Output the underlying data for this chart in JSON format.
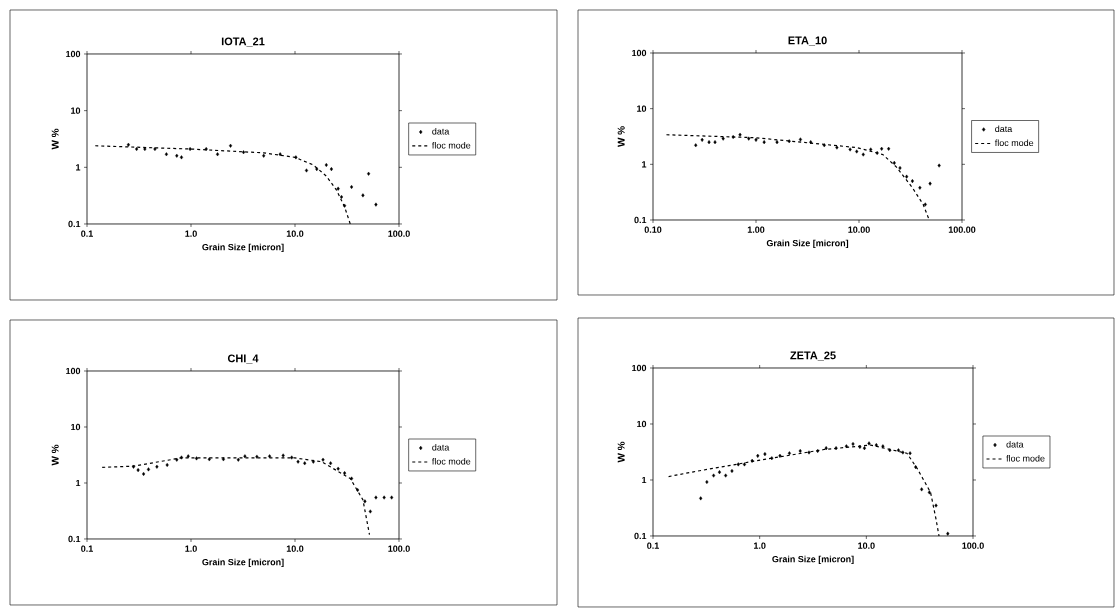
{
  "chart_data": [
    {
      "type": "scatter",
      "title": "IOTA_21",
      "xlabel": "Grain Size [micron]",
      "ylabel": "W %",
      "log": "xy",
      "legend": "right",
      "xlim": [
        0.1,
        100
      ],
      "ylim": [
        0.1,
        100
      ],
      "xticks": [
        {
          "value": 0.1,
          "label": "0.1"
        },
        {
          "value": 1,
          "label": "1.0"
        },
        {
          "value": 10,
          "label": "10.0"
        },
        {
          "value": 100,
          "label": "100.0"
        }
      ],
      "yticks": [
        0.1,
        1,
        10,
        100
      ],
      "series": [
        {
          "name": "data",
          "marker": "diamond",
          "color": "#000000",
          "x": [
            0.25,
            0.3,
            0.36,
            0.45,
            0.58,
            0.73,
            0.81,
            0.98,
            1.4,
            1.8,
            2.4,
            3.2,
            5.0,
            7.2,
            10.2,
            12.9,
            16.2,
            20,
            22.4,
            26,
            28,
            30,
            35,
            45,
            51,
            60
          ],
          "values": [
            2.5,
            2.1,
            2.1,
            2.1,
            1.7,
            1.6,
            1.5,
            2.1,
            2.1,
            1.7,
            2.4,
            1.85,
            1.6,
            1.7,
            1.5,
            0.88,
            0.93,
            1.1,
            0.93,
            0.42,
            0.3,
            0.21,
            0.45,
            0.32,
            0.77,
            0.22
          ]
        },
        {
          "name": "floc mode",
          "type": "line",
          "marker": "none",
          "line_style": "dashed",
          "color": "#000000",
          "x": [
            0.12,
            1,
            5,
            10,
            15,
            20,
            25,
            30,
            34
          ],
          "values": [
            2.4,
            2.1,
            1.8,
            1.5,
            1.1,
            0.7,
            0.4,
            0.2,
            0.1
          ]
        }
      ]
    },
    {
      "type": "scatter",
      "title": "ETA_10",
      "xlabel": "Grain Size [micron]",
      "ylabel": "W %",
      "log": "xy",
      "legend": "right",
      "xlim": [
        0.1,
        100
      ],
      "ylim": [
        0.1,
        100
      ],
      "xticks": [
        {
          "value": 0.1,
          "label": "0.10"
        },
        {
          "value": 1,
          "label": "1.00"
        },
        {
          "value": 10,
          "label": "10.00"
        },
        {
          "value": 100,
          "label": "100.00"
        }
      ],
      "yticks": [
        0.1,
        1,
        10,
        100
      ],
      "series": [
        {
          "name": "data",
          "marker": "diamond",
          "color": "#000000",
          "x": [
            0.26,
            0.3,
            0.35,
            0.4,
            0.48,
            0.6,
            0.7,
            0.85,
            1.0,
            1.2,
            1.6,
            2.1,
            2.7,
            3.4,
            4.6,
            6.1,
            8.2,
            9.5,
            11,
            13,
            15,
            16.6,
            19.4,
            22,
            25,
            29,
            33,
            39,
            44,
            49,
            60
          ],
          "values": [
            2.2,
            2.75,
            2.5,
            2.5,
            2.9,
            3.1,
            3.4,
            2.9,
            2.75,
            2.5,
            2.5,
            2.6,
            2.8,
            2.5,
            2.2,
            2.0,
            1.85,
            1.7,
            1.5,
            1.85,
            1.6,
            1.9,
            1.9,
            1.06,
            0.86,
            0.6,
            0.5,
            0.38,
            0.19,
            0.45,
            0.95
          ]
        },
        {
          "name": "floc mode",
          "type": "line",
          "marker": "none",
          "line_style": "dashed",
          "color": "#000000",
          "x": [
            0.135,
            1.0,
            9.5,
            17,
            23,
            33,
            42,
            48
          ],
          "values": [
            3.4,
            3.0,
            2.0,
            1.5,
            0.9,
            0.38,
            0.19,
            0.1
          ]
        }
      ]
    },
    {
      "type": "scatter",
      "title": "CHI_4",
      "xlabel": "Grain Size [micron]",
      "ylabel": "W %",
      "log": "xy",
      "legend": "right",
      "xlim": [
        0.1,
        100
      ],
      "ylim": [
        0.1,
        100
      ],
      "xticks": [
        {
          "value": 0.1,
          "label": "0.1"
        },
        {
          "value": 1,
          "label": "1.0"
        },
        {
          "value": 10,
          "label": "10.0"
        },
        {
          "value": 100,
          "label": "100.0"
        }
      ],
      "yticks": [
        0.1,
        1,
        10,
        100
      ],
      "series": [
        {
          "name": "data",
          "marker": "diamond",
          "color": "#000000",
          "x": [
            0.28,
            0.31,
            0.35,
            0.39,
            0.47,
            0.59,
            0.73,
            0.81,
            0.94,
            1.13,
            1.5,
            2.05,
            2.85,
            3.3,
            4.3,
            5.7,
            7.7,
            9.3,
            10.7,
            12.4,
            15,
            18.6,
            22,
            26,
            30,
            35,
            40,
            47,
            53,
            60,
            72,
            85
          ],
          "values": [
            1.95,
            1.7,
            1.45,
            1.75,
            1.95,
            2.1,
            2.6,
            2.85,
            3.0,
            2.75,
            2.65,
            2.65,
            2.6,
            3.0,
            2.95,
            3.0,
            3.1,
            2.85,
            2.4,
            2.25,
            2.4,
            2.6,
            2.25,
            1.8,
            1.5,
            1.2,
            0.75,
            0.47,
            0.31,
            0.55,
            0.55,
            0.55
          ]
        },
        {
          "name": "floc mode",
          "type": "line",
          "marker": "none",
          "line_style": "dashed",
          "color": "#000000",
          "x": [
            0.14,
            0.28,
            0.8,
            10,
            18,
            34,
            45,
            52
          ],
          "values": [
            1.9,
            2.0,
            2.8,
            2.8,
            2.4,
            1.2,
            0.5,
            0.12
          ]
        }
      ]
    },
    {
      "type": "scatter",
      "title": "ZETA_25",
      "xlabel": "Grain Size [micron]",
      "ylabel": "W %",
      "log": "xy",
      "legend": "right",
      "xlim": [
        0.1,
        100
      ],
      "ylim": [
        0.1,
        100
      ],
      "xticks": [
        {
          "value": 0.1,
          "label": "0.1"
        },
        {
          "value": 1,
          "label": "1.0"
        },
        {
          "value": 10,
          "label": "10.0"
        },
        {
          "value": 100,
          "label": "100.0"
        }
      ],
      "yticks": [
        0.1,
        1,
        10,
        100
      ],
      "series": [
        {
          "name": "data",
          "marker": "diamond",
          "color": "#000000",
          "x": [
            0.28,
            0.32,
            0.37,
            0.42,
            0.48,
            0.55,
            0.63,
            0.72,
            0.85,
            0.96,
            1.12,
            1.3,
            1.55,
            1.9,
            2.4,
            2.9,
            3.5,
            4.2,
            5.2,
            6.5,
            7.5,
            8.7,
            9.6,
            10.6,
            12.4,
            14.3,
            16.6,
            20,
            22,
            25.7,
            29,
            33,
            39,
            45,
            58
          ],
          "values": [
            0.47,
            0.92,
            1.2,
            1.38,
            1.2,
            1.45,
            1.9,
            1.9,
            2.2,
            2.7,
            2.9,
            2.45,
            2.7,
            3.0,
            3.3,
            3.1,
            3.3,
            3.7,
            3.7,
            4.0,
            4.4,
            3.9,
            3.7,
            4.5,
            4.2,
            4.0,
            3.4,
            3.4,
            3.1,
            3.0,
            1.7,
            0.68,
            0.6,
            0.35,
            0.11
          ]
        },
        {
          "name": "floc mode",
          "type": "line",
          "marker": "none",
          "line_style": "dashed",
          "color": "#000000",
          "x": [
            0.14,
            0.24,
            0.93,
            4.0,
            11,
            24,
            30,
            40,
            45,
            48
          ],
          "values": [
            1.15,
            1.4,
            2.2,
            3.5,
            4.2,
            3.0,
            1.6,
            0.6,
            0.2,
            0.1
          ]
        }
      ]
    }
  ]
}
